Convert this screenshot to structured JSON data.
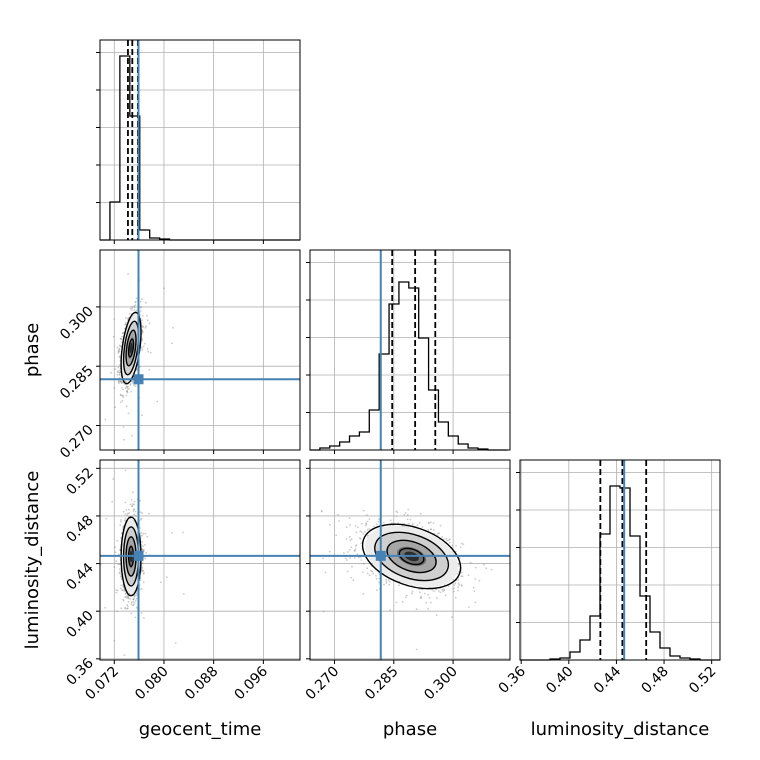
{
  "chart_data": {
    "type": "corner",
    "parameters": [
      "geocent_time",
      "phase",
      "luminosity_distance"
    ],
    "axis_labels": {
      "x": [
        "geocent_time",
        "phase",
        "luminosity_distance"
      ],
      "y": [
        "",
        "phase",
        "luminosity_distance"
      ]
    },
    "ranges": {
      "geocent_time": [
        0.0697,
        0.1019
      ],
      "phase": [
        0.2638,
        0.3144
      ],
      "luminosity_distance": [
        0.359,
        0.527
      ]
    },
    "ticks": {
      "geocent_time": [
        "0.072",
        "0.080",
        "0.088",
        "0.096"
      ],
      "phase": [
        "0.270",
        "0.285",
        "0.300"
      ],
      "luminosity_distance": [
        "0.36",
        "0.40",
        "0.44",
        "0.48",
        "0.52"
      ]
    },
    "truth": {
      "geocent_time": 0.0759,
      "phase": 0.2817,
      "luminosity_distance": 0.4465
    },
    "quantiles": {
      "geocent_time": [
        0.0742,
        0.0749,
        0.0758
      ],
      "phase": [
        0.2846,
        0.2904,
        0.2955
      ],
      "luminosity_distance": [
        0.4265,
        0.445,
        0.465
      ]
    },
    "hist1d": {
      "geocent_time": {
        "edges": [
          0.0697,
          0.0713,
          0.0729,
          0.0745,
          0.0761,
          0.0777,
          0.0793,
          0.0809,
          0.0825,
          0.1019
        ],
        "counts": [
          0.0,
          0.19,
          0.92,
          0.62,
          0.05,
          0.01,
          0.005,
          0.0,
          0.0
        ]
      },
      "phase": {
        "start": 0.2638,
        "step": 0.0025,
        "counts": [
          0.0,
          0.01,
          0.02,
          0.04,
          0.07,
          0.09,
          0.2,
          0.48,
          0.73,
          0.84,
          0.81,
          0.56,
          0.3,
          0.14,
          0.07,
          0.03,
          0.01,
          0.005,
          0.0,
          0.0
        ]
      },
      "luminosity_distance": {
        "start": 0.359,
        "step": 0.0084,
        "counts": [
          0.0,
          0.0,
          0.0,
          0.005,
          0.01,
          0.04,
          0.1,
          0.22,
          0.63,
          0.87,
          0.86,
          0.62,
          0.32,
          0.14,
          0.06,
          0.02,
          0.01,
          0.005,
          0.0,
          0.0
        ]
      }
    },
    "pairs": [
      {
        "x": "geocent_time",
        "y": "phase",
        "center": [
          0.0747,
          0.2896
        ],
        "spread": [
          0.0008,
          0.0045
        ],
        "corr": 0.45
      },
      {
        "x": "geocent_time",
        "y": "luminosity_distance",
        "center": [
          0.0747,
          0.446
        ],
        "spread": [
          0.0008,
          0.0165
        ],
        "corr": 0.0
      },
      {
        "x": "phase",
        "y": "luminosity_distance",
        "center": [
          0.2895,
          0.446
        ],
        "spread": [
          0.0062,
          0.0135
        ],
        "corr": -0.35
      }
    ],
    "contour_levels_sigma": [
      0.5,
      1.0,
      1.5,
      2.0
    ],
    "grid": true,
    "colors": {
      "truth": "#4682b4",
      "hist": "#000000",
      "scatter": "#8c8c8c",
      "grid": "#b0b0b0"
    }
  }
}
